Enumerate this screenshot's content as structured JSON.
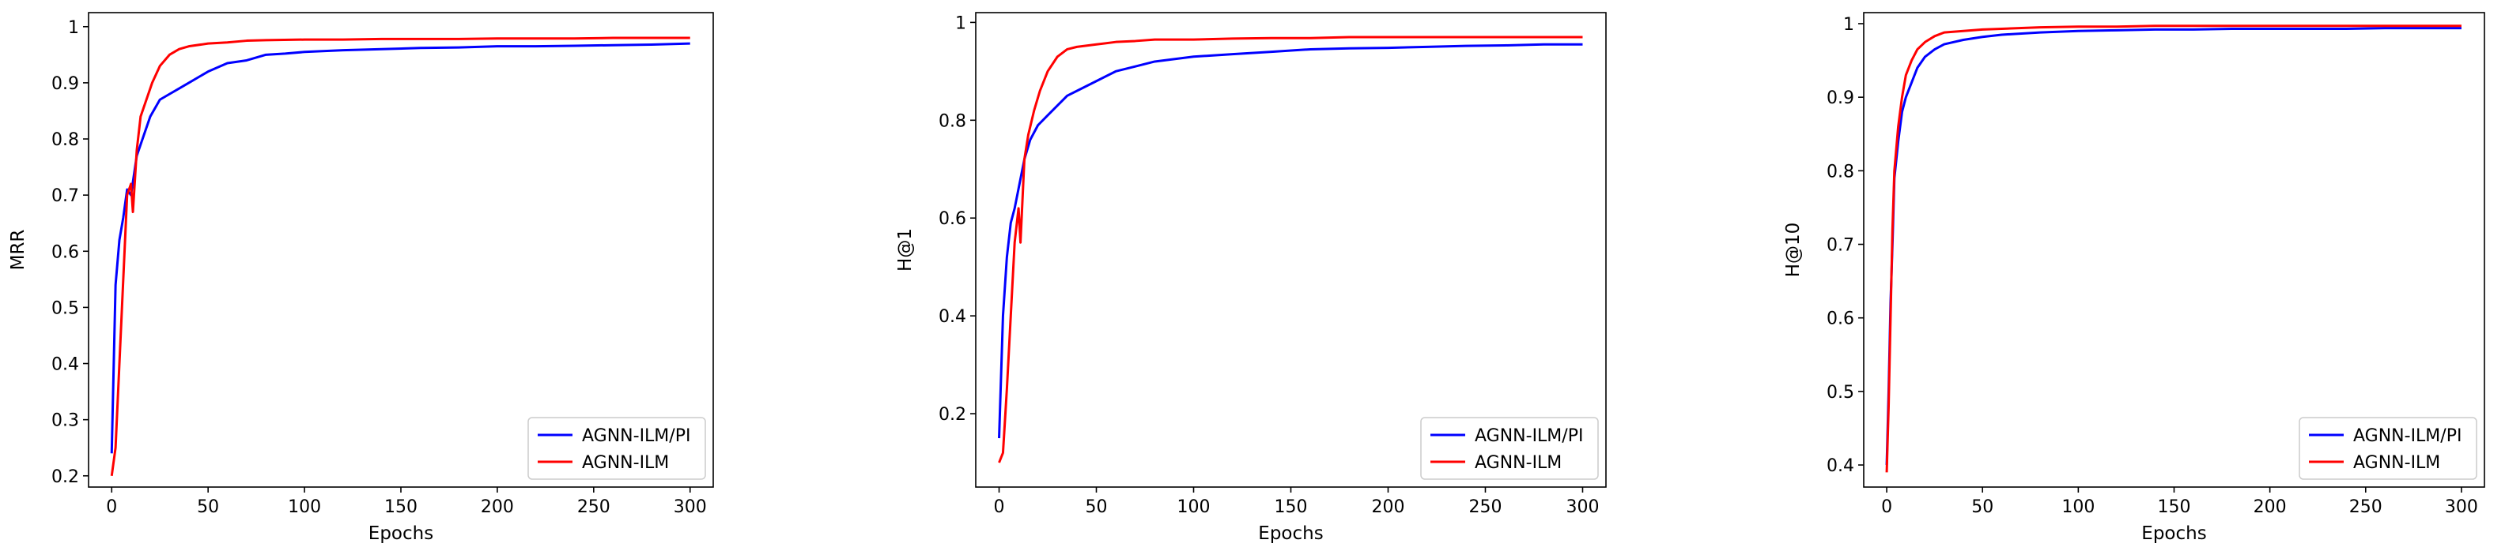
{
  "chart_data": [
    {
      "type": "line",
      "title": "",
      "xlabel": "Epochs",
      "ylabel": "MRR",
      "xlim": [
        -12,
        312
      ],
      "ylim": [
        0.18,
        1.025
      ],
      "xticks": [
        0,
        50,
        100,
        150,
        200,
        250,
        300
      ],
      "yticks": [
        0.2,
        0.3,
        0.4,
        0.5,
        0.6,
        0.7,
        0.8,
        0.9,
        1.0
      ],
      "grid": false,
      "legend_position": "lower-right",
      "series": [
        {
          "name": "AGNN-ILM/PI",
          "color": "#0000ff",
          "x": [
            0,
            2,
            4,
            6,
            8,
            10,
            13,
            16,
            20,
            25,
            30,
            35,
            40,
            50,
            60,
            70,
            80,
            90,
            100,
            120,
            140,
            160,
            180,
            200,
            220,
            240,
            260,
            280,
            300
          ],
          "values": [
            0.24,
            0.54,
            0.62,
            0.66,
            0.71,
            0.7,
            0.77,
            0.8,
            0.84,
            0.87,
            0.88,
            0.89,
            0.9,
            0.92,
            0.935,
            0.94,
            0.95,
            0.952,
            0.955,
            0.958,
            0.96,
            0.962,
            0.963,
            0.965,
            0.965,
            0.966,
            0.967,
            0.968,
            0.97
          ]
        },
        {
          "name": "AGNN-ILM",
          "color": "#ff0000",
          "x": [
            0,
            2,
            4,
            6,
            8,
            10,
            11,
            13,
            15,
            18,
            21,
            25,
            30,
            35,
            40,
            50,
            60,
            70,
            80,
            100,
            120,
            140,
            160,
            180,
            200,
            220,
            240,
            260,
            280,
            300
          ],
          "values": [
            0.2,
            0.25,
            0.4,
            0.55,
            0.7,
            0.72,
            0.67,
            0.78,
            0.84,
            0.87,
            0.9,
            0.93,
            0.95,
            0.96,
            0.965,
            0.97,
            0.972,
            0.975,
            0.976,
            0.977,
            0.977,
            0.978,
            0.978,
            0.978,
            0.979,
            0.979,
            0.979,
            0.98,
            0.98,
            0.98
          ]
        }
      ]
    },
    {
      "type": "line",
      "title": "",
      "xlabel": "Epochs",
      "ylabel": "H@1",
      "xlim": [
        -12,
        312
      ],
      "ylim": [
        0.05,
        1.02
      ],
      "xticks": [
        0,
        50,
        100,
        150,
        200,
        250,
        300
      ],
      "yticks": [
        0.2,
        0.4,
        0.6,
        0.8,
        1.0
      ],
      "grid": false,
      "legend_position": "lower-right",
      "series": [
        {
          "name": "AGNN-ILM/PI",
          "color": "#0000ff",
          "x": [
            0,
            2,
            4,
            6,
            8,
            10,
            13,
            16,
            20,
            25,
            30,
            35,
            40,
            50,
            60,
            70,
            80,
            90,
            100,
            120,
            140,
            160,
            180,
            200,
            220,
            240,
            260,
            280,
            300
          ],
          "values": [
            0.15,
            0.4,
            0.52,
            0.59,
            0.62,
            0.66,
            0.72,
            0.76,
            0.79,
            0.81,
            0.83,
            0.85,
            0.86,
            0.88,
            0.9,
            0.91,
            0.92,
            0.925,
            0.93,
            0.935,
            0.94,
            0.945,
            0.947,
            0.948,
            0.95,
            0.952,
            0.953,
            0.955,
            0.955
          ]
        },
        {
          "name": "AGNN-ILM",
          "color": "#ff0000",
          "x": [
            0,
            2,
            4,
            6,
            8,
            10,
            11,
            13,
            15,
            18,
            21,
            25,
            30,
            35,
            40,
            50,
            60,
            70,
            80,
            100,
            120,
            140,
            160,
            180,
            200,
            220,
            240,
            260,
            280,
            300
          ],
          "values": [
            0.1,
            0.12,
            0.25,
            0.4,
            0.55,
            0.62,
            0.55,
            0.72,
            0.77,
            0.82,
            0.86,
            0.9,
            0.93,
            0.945,
            0.95,
            0.955,
            0.96,
            0.962,
            0.965,
            0.965,
            0.967,
            0.968,
            0.968,
            0.97,
            0.97,
            0.97,
            0.97,
            0.97,
            0.97,
            0.97
          ]
        }
      ]
    },
    {
      "type": "line",
      "title": "",
      "xlabel": "Epochs",
      "ylabel": "H@10",
      "xlim": [
        -12,
        312
      ],
      "ylim": [
        0.37,
        1.015
      ],
      "xticks": [
        0,
        50,
        100,
        150,
        200,
        250,
        300
      ],
      "yticks": [
        0.4,
        0.5,
        0.6,
        0.7,
        0.8,
        0.9,
        1.0
      ],
      "grid": false,
      "legend_position": "lower-right",
      "series": [
        {
          "name": "AGNN-ILM/PI",
          "color": "#0000ff",
          "x": [
            0,
            1,
            2,
            3,
            4,
            6,
            8,
            10,
            13,
            16,
            20,
            25,
            30,
            40,
            50,
            60,
            80,
            100,
            120,
            140,
            160,
            180,
            200,
            220,
            240,
            260,
            280,
            300
          ],
          "values": [
            0.4,
            0.5,
            0.62,
            0.7,
            0.79,
            0.84,
            0.88,
            0.9,
            0.92,
            0.94,
            0.955,
            0.965,
            0.972,
            0.978,
            0.982,
            0.985,
            0.988,
            0.99,
            0.991,
            0.992,
            0.992,
            0.993,
            0.993,
            0.993,
            0.993,
            0.994,
            0.994,
            0.994
          ]
        },
        {
          "name": "AGNN-ILM",
          "color": "#ff0000",
          "x": [
            0,
            1,
            2,
            3,
            4,
            6,
            8,
            10,
            13,
            16,
            20,
            25,
            30,
            40,
            50,
            60,
            80,
            100,
            120,
            140,
            160,
            180,
            200,
            220,
            240,
            260,
            280,
            300
          ],
          "values": [
            0.39,
            0.48,
            0.6,
            0.72,
            0.8,
            0.86,
            0.9,
            0.93,
            0.95,
            0.965,
            0.975,
            0.983,
            0.988,
            0.99,
            0.992,
            0.993,
            0.995,
            0.996,
            0.996,
            0.997,
            0.997,
            0.997,
            0.997,
            0.997,
            0.997,
            0.997,
            0.997,
            0.997
          ]
        }
      ]
    }
  ]
}
